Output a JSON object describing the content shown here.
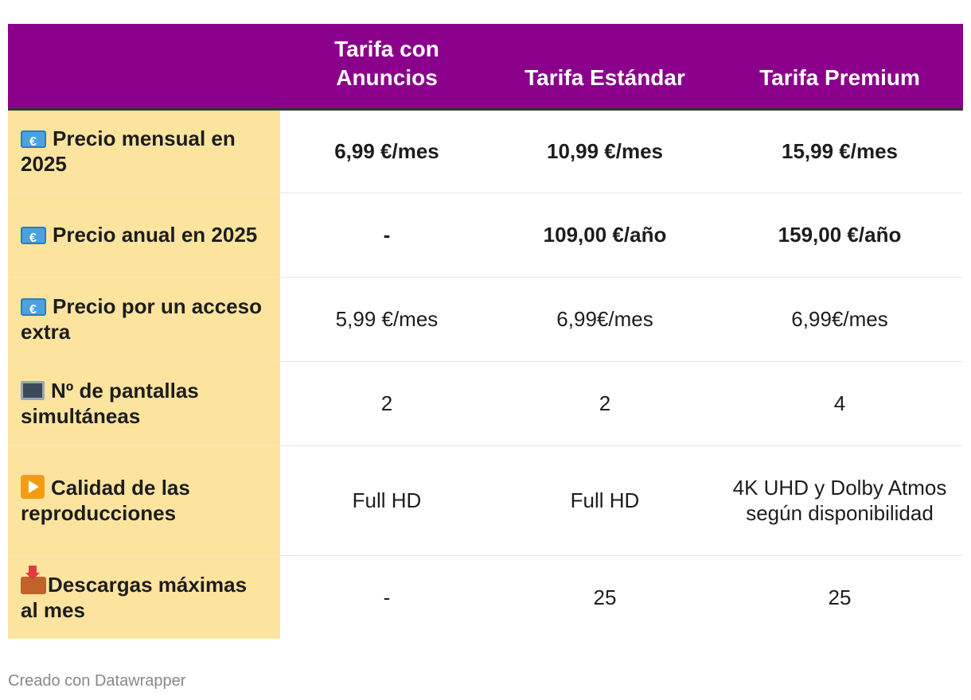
{
  "chart_data": {
    "type": "table",
    "header": {
      "label": "",
      "plans": [
        "Tarifa con Anuncios",
        "Tarifa Estándar",
        "Tarifa Premium"
      ]
    },
    "rows": [
      {
        "icon": "euro-banknote-icon",
        "label": "Precio mensual en 2025",
        "values": [
          "6,99 €/mes",
          "10,99 €/mes",
          "15,99 €/mes"
        ]
      },
      {
        "icon": "euro-banknote-icon",
        "label": "Precio anual en 2025",
        "values": [
          "-",
          "109,00 €/año",
          "159,00 €/año"
        ]
      },
      {
        "icon": "euro-banknote-icon",
        "label": "Precio por un acceso extra",
        "values": [
          "5,99 €/mes",
          "6,99€/mes",
          "6,99€/mes"
        ]
      },
      {
        "icon": "monitor-icon",
        "label": "Nº de pantallas simultáneas",
        "values": [
          "2",
          "2",
          "4"
        ]
      },
      {
        "icon": "play-button-icon",
        "label": "Calidad de las reproducciones",
        "values": [
          "Full HD",
          "Full HD",
          "4K UHD y Dolby Atmos según disponibilidad"
        ]
      },
      {
        "icon": "inbox-tray-icon",
        "label": "Descargas máximas al mes",
        "values": [
          "-",
          "25",
          "25"
        ]
      }
    ],
    "colors": {
      "header_background": "#8a008a",
      "label_column_background": "#fce49f"
    }
  },
  "footer": {
    "credit": "Creado con Datawrapper"
  }
}
